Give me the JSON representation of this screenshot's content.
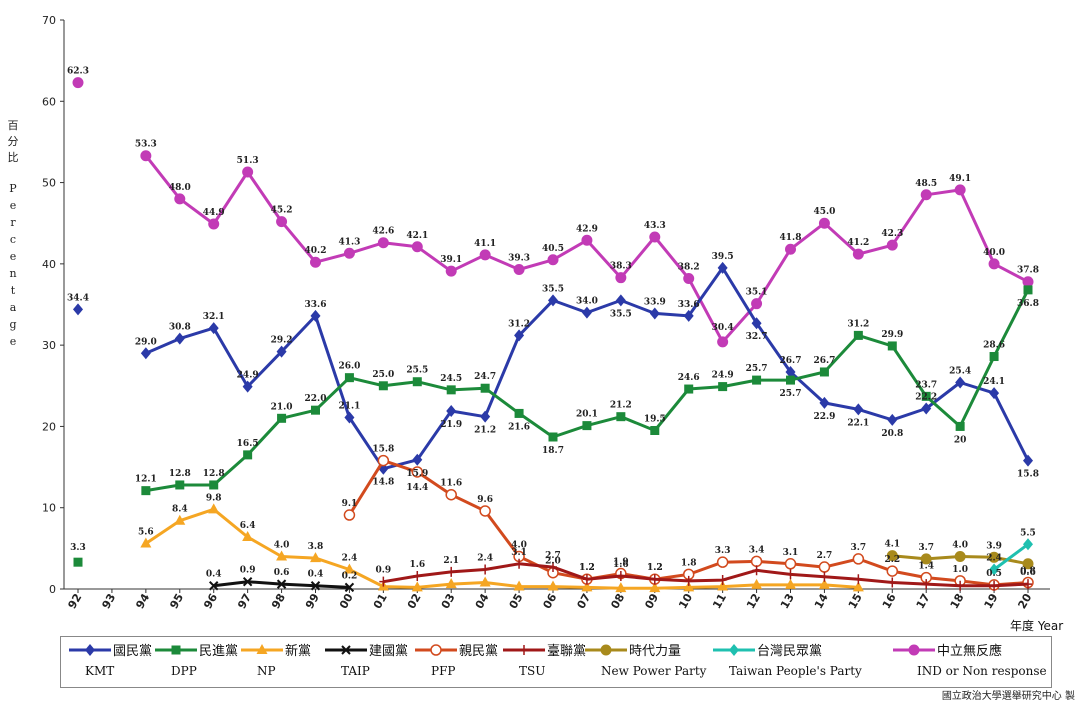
{
  "chart_data": {
    "type": "line",
    "ylabel_zh": "百分比",
    "ylabel_en": "Percentage",
    "xlabel": "年度 Year",
    "ylim": [
      0,
      70
    ],
    "yticks": [
      "0",
      "10",
      "20",
      "30",
      "40",
      "50",
      "60",
      "70"
    ],
    "x": [
      "92",
      "93",
      "94",
      "95",
      "96",
      "97",
      "98",
      "99",
      "00",
      "01",
      "02",
      "03",
      "04",
      "05",
      "06",
      "07",
      "08",
      "09",
      "10",
      "11",
      "12",
      "13",
      "14",
      "15",
      "16",
      "17",
      "18",
      "19",
      "20"
    ],
    "series": [
      {
        "key": "ind",
        "name_zh": "中立無反應",
        "name_en": "IND or Non response",
        "color": "#c23bb6",
        "marker": "circle",
        "values": [
          62.3,
          null,
          53.3,
          48.0,
          44.9,
          51.3,
          45.2,
          40.2,
          41.3,
          42.6,
          42.1,
          39.1,
          41.1,
          39.3,
          40.5,
          42.9,
          38.3,
          43.3,
          38.2,
          30.4,
          35.1,
          41.8,
          45.0,
          41.2,
          42.3,
          48.5,
          49.1,
          40.0,
          37.8
        ],
        "labels": [
          "62.3",
          null,
          "53.3",
          "48.0",
          "44.9",
          "51.3",
          "45.2",
          "40.2",
          "41.3",
          "42.6",
          "42.1",
          "39.1",
          "41.1",
          "39.3",
          "40.5",
          "42.9",
          "38.3",
          "43.3",
          "38.2",
          "30.4",
          "35.1",
          "41.8",
          "45.0",
          "41.2",
          "42.3",
          "48.5",
          "49.1",
          "40.0",
          "37.8"
        ]
      },
      {
        "key": "kmt",
        "name_zh": "國民黨",
        "name_en": "KMT",
        "color": "#2b3aa8",
        "marker": "diamond",
        "values": [
          34.4,
          null,
          29.0,
          30.8,
          32.1,
          24.9,
          29.2,
          33.6,
          21.1,
          14.8,
          15.9,
          21.9,
          21.2,
          31.2,
          35.5,
          34.0,
          35.5,
          33.9,
          33.6,
          39.5,
          32.7,
          26.7,
          22.9,
          22.1,
          20.8,
          22.2,
          25.4,
          24.1,
          15.8
        ],
        "labels": [
          "34.4",
          null,
          "29.0",
          "30.8",
          "32.1",
          "24.9",
          "29.2",
          "33.6",
          "21.1",
          "14.8",
          "15.9",
          "21.9",
          "21.2",
          "31.2",
          "35.5",
          "34.0",
          "35.5",
          "33.9",
          "33.6",
          "39.5",
          "32.7",
          "26.7",
          "22.9",
          "22.1",
          "20.8",
          "22.2",
          "25.4",
          "24.1",
          "15.8"
        ]
      },
      {
        "key": "dpp",
        "name_zh": "民進黨",
        "name_en": "DPP",
        "color": "#1c8a3a",
        "marker": "square",
        "values": [
          3.3,
          null,
          12.1,
          12.8,
          12.8,
          16.5,
          21.0,
          22.0,
          26.0,
          25.0,
          25.5,
          24.5,
          24.7,
          21.6,
          18.7,
          20.1,
          21.2,
          19.5,
          24.6,
          24.9,
          25.7,
          25.7,
          26.7,
          31.2,
          29.9,
          23.7,
          20.0,
          28.6,
          36.8
        ],
        "labels": [
          "3.3",
          null,
          "12.1",
          "12.8",
          "12.8",
          "16.5",
          "21.0",
          "22.0",
          "26.0",
          "25.0",
          "25.5",
          "24.5",
          "24.7",
          "21.6",
          "18.7",
          "20.1",
          "21.2",
          "19.5",
          "24.6",
          "24.9",
          "25.7",
          "25.7",
          "26.7",
          "31.2",
          "29.9",
          "23.7",
          "20",
          "28.6",
          "36.8"
        ]
      },
      {
        "key": "np",
        "name_zh": "新黨",
        "name_en": "NP",
        "color": "#f5a623",
        "marker": "triangle",
        "values": [
          null,
          null,
          5.6,
          8.4,
          9.8,
          6.4,
          4.0,
          3.8,
          2.4,
          0.3,
          0.2,
          0.6,
          0.8,
          0.3,
          0.3,
          0.2,
          0.1,
          0.1,
          0.2,
          0.3,
          0.5,
          0.5,
          0.5,
          0.2,
          null,
          null,
          null,
          null,
          null
        ],
        "labels": [
          null,
          null,
          "5.6",
          "8.4",
          "9.8",
          "6.4",
          "4.0",
          "3.8",
          "2.4",
          null,
          null,
          null,
          null,
          null,
          null,
          null,
          null,
          null,
          null,
          null,
          null,
          null,
          null,
          null,
          null,
          null,
          null,
          null,
          null
        ]
      },
      {
        "key": "taip",
        "name_zh": "建國黨",
        "name_en": "TAIP",
        "color": "#111111",
        "marker": "x",
        "values": [
          null,
          null,
          null,
          null,
          0.4,
          0.9,
          0.6,
          0.4,
          0.2,
          null,
          null,
          null,
          null,
          null,
          null,
          null,
          null,
          null,
          null,
          null,
          null,
          null,
          null,
          null,
          null,
          null,
          null,
          null,
          null
        ],
        "labels": [
          null,
          null,
          null,
          null,
          "0.4",
          "0.9",
          "0.6",
          "0.4",
          "0.2",
          null,
          null,
          null,
          null,
          null,
          null,
          null,
          null,
          null,
          null,
          null,
          null,
          null,
          null,
          null,
          null,
          null,
          null,
          null,
          null
        ]
      },
      {
        "key": "pfp",
        "name_zh": "親民黨",
        "name_en": "PFP",
        "color": "#d24a1e",
        "marker": "hollow",
        "values": [
          null,
          null,
          null,
          null,
          null,
          null,
          null,
          null,
          9.1,
          15.8,
          14.4,
          11.6,
          9.6,
          4.0,
          2.0,
          1.2,
          1.9,
          1.2,
          1.8,
          3.3,
          3.4,
          3.1,
          2.7,
          3.7,
          2.2,
          1.4,
          1.0,
          0.5,
          0.8
        ],
        "labels": [
          null,
          null,
          null,
          null,
          null,
          null,
          null,
          null,
          "9.1",
          "15.8",
          "14.4",
          "11.6",
          "9.6",
          "4.0",
          "2.0",
          "1.2",
          "1.9",
          "1.2",
          "1.8",
          "3.3",
          "3.4",
          "3.1",
          "2.7",
          "3.7",
          "2.2",
          "1.4",
          "1.0",
          "0.5",
          "0.8"
        ]
      },
      {
        "key": "tsu",
        "name_zh": "臺聯黨",
        "name_en": "TSU",
        "color": "#a01818",
        "marker": "plus",
        "values": [
          null,
          null,
          null,
          null,
          null,
          null,
          null,
          null,
          null,
          0.9,
          1.6,
          2.1,
          2.4,
          3.1,
          2.7,
          1.2,
          1.6,
          1.2,
          1.0,
          1.1,
          2.3,
          1.8,
          1.5,
          1.2,
          0.8,
          0.6,
          0.4,
          0.4,
          0.6
        ],
        "labels": [
          null,
          null,
          null,
          null,
          null,
          null,
          null,
          null,
          null,
          "0.9",
          "1.6",
          "2.1",
          "2.4",
          "3.1",
          "2.7",
          "1.2",
          "1.6",
          "1.2",
          null,
          null,
          null,
          null,
          null,
          null,
          null,
          null,
          null,
          null,
          "0.6"
        ]
      },
      {
        "key": "npp",
        "name_zh": "時代力量",
        "name_en": "New Power Party",
        "color": "#a88a1c",
        "marker": "circle",
        "values": [
          null,
          null,
          null,
          null,
          null,
          null,
          null,
          null,
          null,
          null,
          null,
          null,
          null,
          null,
          null,
          null,
          null,
          null,
          null,
          null,
          null,
          null,
          null,
          null,
          4.1,
          3.7,
          4.0,
          3.9,
          3.1
        ],
        "labels": [
          null,
          null,
          null,
          null,
          null,
          null,
          null,
          null,
          null,
          null,
          null,
          null,
          null,
          null,
          null,
          null,
          null,
          null,
          null,
          null,
          null,
          null,
          null,
          null,
          "4.1",
          "3.7",
          "4.0",
          "3.9",
          null
        ]
      },
      {
        "key": "tpp",
        "name_zh": "台灣民眾黨",
        "name_en": "Taiwan People's Party",
        "color": "#1fc0b0",
        "marker": "diamond",
        "values": [
          null,
          null,
          null,
          null,
          null,
          null,
          null,
          null,
          null,
          null,
          null,
          null,
          null,
          null,
          null,
          null,
          null,
          null,
          null,
          null,
          null,
          null,
          null,
          null,
          null,
          null,
          null,
          2.4,
          5.5
        ],
        "labels": [
          null,
          null,
          null,
          null,
          null,
          null,
          null,
          null,
          null,
          null,
          null,
          null,
          null,
          null,
          null,
          null,
          null,
          null,
          null,
          null,
          null,
          null,
          null,
          null,
          null,
          null,
          null,
          "2.4",
          "5.5"
        ]
      }
    ],
    "legend_order": [
      "kmt",
      "dpp",
      "np",
      "taip",
      "pfp",
      "tsu",
      "npp",
      "tpp",
      "ind"
    ],
    "legend_placement": "bottom"
  },
  "credit": "國立政治大學選舉研究中心 製"
}
